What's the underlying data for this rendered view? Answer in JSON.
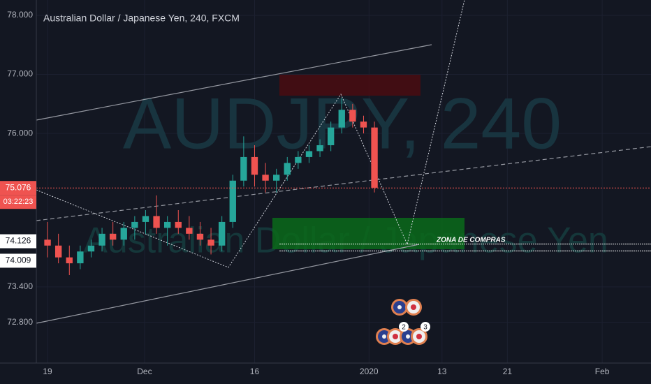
{
  "chart_data": {
    "type": "candlestick",
    "title": "Australian Dollar / Japanese Yen, 240, FXCM",
    "watermark": "AUDJPY, 240",
    "watermark_subtitle": "Australian Dollar / Japanese Yen",
    "annotation": "ZONA DE COMPRAS",
    "countdown": "03:22:23",
    "up_color": "#26a69a",
    "down_color": "#ef5350",
    "grid": true,
    "x": [
      0,
      1,
      2,
      3,
      4,
      5,
      6,
      7,
      8,
      9,
      10,
      11,
      12,
      13,
      14,
      15,
      16,
      17,
      18,
      19,
      20,
      21,
      22,
      23,
      24,
      25,
      26,
      27,
      28,
      29,
      30
    ],
    "open": [
      74.2,
      74.1,
      73.9,
      73.8,
      74.0,
      74.1,
      74.3,
      74.2,
      74.4,
      74.5,
      74.6,
      74.4,
      74.5,
      74.4,
      74.3,
      74.2,
      74.1,
      74.5,
      75.2,
      75.6,
      75.3,
      75.2,
      75.3,
      75.5,
      75.6,
      75.7,
      75.8,
      76.1,
      76.4,
      76.2,
      76.1
    ],
    "high": [
      74.5,
      74.3,
      74.1,
      74.1,
      74.2,
      74.4,
      74.5,
      74.5,
      74.6,
      74.7,
      74.95,
      74.6,
      74.7,
      74.6,
      74.5,
      74.4,
      74.6,
      75.3,
      75.95,
      75.8,
      75.5,
      75.4,
      75.6,
      75.7,
      75.8,
      75.9,
      76.2,
      76.6,
      76.5,
      76.3,
      76.2
    ],
    "low": [
      73.9,
      73.8,
      73.6,
      73.7,
      73.9,
      74.0,
      74.1,
      74.1,
      74.2,
      74.3,
      74.3,
      74.1,
      74.3,
      74.2,
      74.1,
      73.95,
      74.0,
      74.4,
      75.1,
      75.1,
      75.0,
      75.0,
      75.2,
      75.4,
      75.5,
      75.6,
      75.7,
      76.0,
      76.1,
      76.0,
      75.0
    ],
    "close": [
      74.1,
      73.9,
      73.8,
      74.0,
      74.1,
      74.3,
      74.2,
      74.4,
      74.5,
      74.6,
      74.4,
      74.5,
      74.4,
      74.3,
      74.2,
      74.1,
      74.5,
      75.2,
      75.6,
      75.3,
      75.2,
      75.3,
      75.5,
      75.6,
      75.7,
      75.8,
      76.1,
      76.4,
      76.2,
      76.1,
      75.08
    ],
    "xlim": [
      -1.03,
      55.38
    ],
    "xticks": [
      {
        "value": 0,
        "label": "19"
      },
      {
        "value": 8.9,
        "label": "Dec"
      },
      {
        "value": 19,
        "label": "16"
      },
      {
        "value": 29.5,
        "label": "2020"
      },
      {
        "value": 36.2,
        "label": "13"
      },
      {
        "value": 42.2,
        "label": "21"
      },
      {
        "value": 50.9,
        "label": "Feb"
      }
    ],
    "ylim": [
      72.11,
      78.26
    ],
    "yticks": [
      {
        "value": 78,
        "label": "78.000"
      },
      {
        "value": 77,
        "label": "77.000"
      },
      {
        "value": 76,
        "label": "76.000"
      },
      {
        "value": 73.4,
        "label": "73.400"
      },
      {
        "value": 72.8,
        "label": "72.800"
      }
    ],
    "price_markers": [
      {
        "value": 75.076,
        "label": "75.076",
        "color": "#ef5350"
      },
      {
        "value": 74.126,
        "label": "74.126",
        "color": "#ffffff"
      },
      {
        "value": 74.009,
        "label": "74.009",
        "color": "#ffffff"
      }
    ],
    "event_badges": [
      2,
      3
    ]
  }
}
